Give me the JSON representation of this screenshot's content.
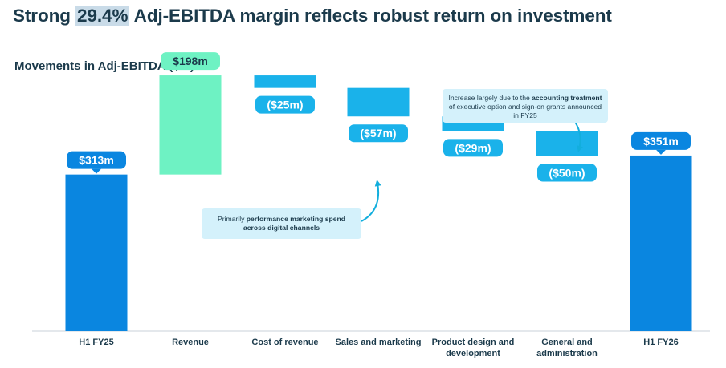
{
  "title": {
    "before": "Strong ",
    "highlight": "29.4%",
    "after": " Adj-EBITDA margin reflects robust return on investment"
  },
  "subtitle": {
    "text": "Movements in Adj-EBITDA ($m)",
    "footnote": "1"
  },
  "chart_data": {
    "type": "bar",
    "subtype": "waterfall",
    "title": "Movements in Adj-EBITDA ($m)",
    "unit": "$m",
    "categories": [
      "H1 FY25",
      "Revenue",
      "Cost of revenue",
      "Sales and marketing",
      "Product design and development",
      "General and administration",
      "H1 FY26"
    ],
    "category_lines": [
      [
        "H1 FY25"
      ],
      [
        "Revenue"
      ],
      [
        "Cost of revenue"
      ],
      [
        "Sales and marketing"
      ],
      [
        "Product design and",
        "development"
      ],
      [
        "General and",
        "administration"
      ],
      [
        "H1 FY26"
      ]
    ],
    "values": [
      313,
      198,
      -25,
      -57,
      -29,
      -50,
      351
    ],
    "bar_kinds": [
      "total",
      "increase",
      "decrease",
      "decrease",
      "decrease",
      "decrease",
      "total"
    ],
    "data_labels": [
      "$313m",
      "$198m",
      "($25m)",
      "($57m)",
      "($29m)",
      "($50m)",
      "$351m"
    ],
    "colors": {
      "total": "#0a86e0",
      "increase": "#6ef2c3",
      "decrease": "#1ab2ea",
      "label_total": "#0a86e0",
      "label_increase": "#6ef2c3",
      "label_decrease": "#1ab2ea"
    },
    "ylim": [
      0,
      580
    ],
    "grid": false,
    "legend": "none"
  },
  "callouts": {
    "accounting": {
      "pre": "Increase largely due to the ",
      "bold": "accounting treatment",
      "post": " of executive option and sign-on grants announced in FY25"
    },
    "marketing": {
      "pre": "Primarily ",
      "bold": "performance marketing spend across digital channels",
      "post": ""
    }
  }
}
